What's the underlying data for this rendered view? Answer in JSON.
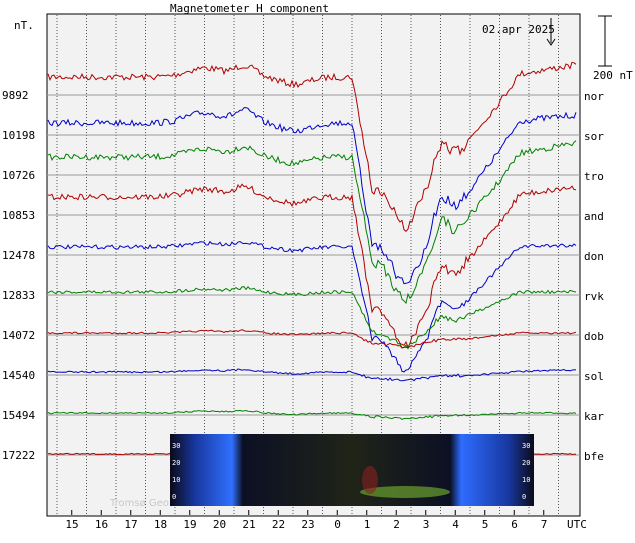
{
  "chart_data": {
    "type": "line",
    "title": "Magnetometer H component",
    "date": "02.apr 2025",
    "y_unit": "nT.",
    "scale_bar": "200 nT",
    "x_unit": "UTC",
    "x_ticks": [
      "15",
      "16",
      "17",
      "18",
      "19",
      "20",
      "21",
      "22",
      "23",
      "0",
      "1",
      "2",
      "3",
      "4",
      "5",
      "6",
      "7"
    ],
    "grid": true,
    "watermark": "Tromsø Geo",
    "series": [
      {
        "name": "nor",
        "baseline": "9892",
        "color": "#b00000"
      },
      {
        "name": "sor",
        "baseline": "10198",
        "color": "#0000c8"
      },
      {
        "name": "tro",
        "baseline": "10726",
        "color": "#008000"
      },
      {
        "name": "and",
        "baseline": "10853",
        "color": "#b00000"
      },
      {
        "name": "don",
        "baseline": "12478",
        "color": "#0000c8"
      },
      {
        "name": "rvk",
        "baseline": "12833",
        "color": "#008000"
      },
      {
        "name": "dob",
        "baseline": "14072",
        "color": "#b00000"
      },
      {
        "name": "sol",
        "baseline": "14540",
        "color": "#0000c8"
      },
      {
        "name": "kar",
        "baseline": "15494",
        "color": "#008000"
      },
      {
        "name": "bfe",
        "baseline": "17222",
        "color": "#b00000"
      }
    ],
    "inset": {
      "y_ticks": [
        "30",
        "20",
        "10",
        "0"
      ]
    }
  }
}
